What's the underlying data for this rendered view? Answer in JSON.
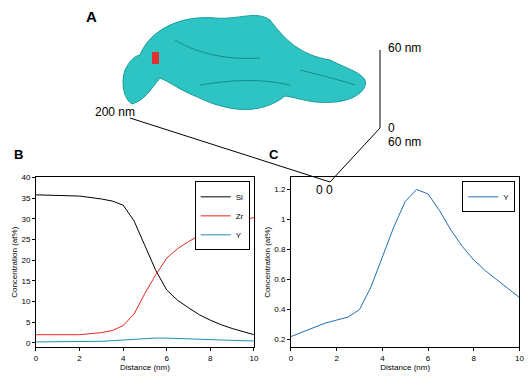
{
  "panel_a": {
    "label": "A",
    "axis_labels": [
      "200 nm",
      "60 nm",
      "0",
      "60 nm",
      "0 0"
    ]
  },
  "chart_data": [
    {
      "type": "line",
      "label": "B",
      "x_label": "Distance (nm)",
      "y_label": "Concentration (at%)",
      "xlim": [
        0,
        10
      ],
      "xticks": [
        0,
        2,
        4,
        6,
        8,
        10
      ],
      "ylim": [
        -1,
        40
      ],
      "yticks": [
        0,
        5,
        10,
        15,
        20,
        25,
        30,
        35,
        40
      ],
      "grid": false,
      "legend": "upper right",
      "x": [
        0,
        1,
        2,
        3,
        3.5,
        4,
        4.5,
        5,
        5.5,
        6,
        6.5,
        7,
        7.5,
        8,
        8.5,
        9,
        9.5,
        10
      ],
      "series": [
        {
          "name": "Si",
          "color": "#000000",
          "values": [
            35.8,
            35.7,
            35.5,
            34.8,
            34.3,
            33.3,
            29.5,
            23.5,
            17.5,
            12.8,
            10.3,
            8.5,
            6.8,
            5.5,
            4.4,
            3.5,
            2.7,
            2.0
          ]
        },
        {
          "name": "Zr",
          "color": "#e8261c",
          "values": [
            2.0,
            2.0,
            2.0,
            2.5,
            3.0,
            4.2,
            7.0,
            12.0,
            16.5,
            20.5,
            22.8,
            24.5,
            26.0,
            27.0,
            28.0,
            29.0,
            29.7,
            30.3
          ]
        },
        {
          "name": "Y",
          "color": "#1f8fb4",
          "values": [
            0.25,
            0.28,
            0.33,
            0.4,
            0.55,
            0.75,
            0.95,
            1.12,
            1.2,
            1.17,
            1.06,
            0.93,
            0.82,
            0.73,
            0.66,
            0.6,
            0.54,
            0.48
          ]
        }
      ]
    },
    {
      "type": "line",
      "label": "C",
      "x_label": "Distance (nm)",
      "y_label": "Concentration (at%)",
      "xlim": [
        0,
        10
      ],
      "xticks": [
        0,
        2,
        4,
        6,
        8,
        10
      ],
      "ylim": [
        0.15,
        1.28
      ],
      "yticks": [
        0.2,
        0.4,
        0.6,
        0.8,
        1.0,
        1.2
      ],
      "grid": false,
      "legend": "upper right",
      "x": [
        0,
        0.5,
        1,
        1.5,
        2,
        2.5,
        3,
        3.5,
        4,
        4.5,
        5,
        5.5,
        6,
        6.5,
        7,
        7.5,
        8,
        8.5,
        9,
        9.5,
        10
      ],
      "series": [
        {
          "name": "Y",
          "color": "#1f6fb4",
          "values": [
            0.22,
            0.25,
            0.28,
            0.31,
            0.33,
            0.35,
            0.4,
            0.55,
            0.75,
            0.95,
            1.12,
            1.2,
            1.17,
            1.06,
            0.93,
            0.82,
            0.73,
            0.66,
            0.6,
            0.54,
            0.48
          ]
        }
      ]
    }
  ]
}
